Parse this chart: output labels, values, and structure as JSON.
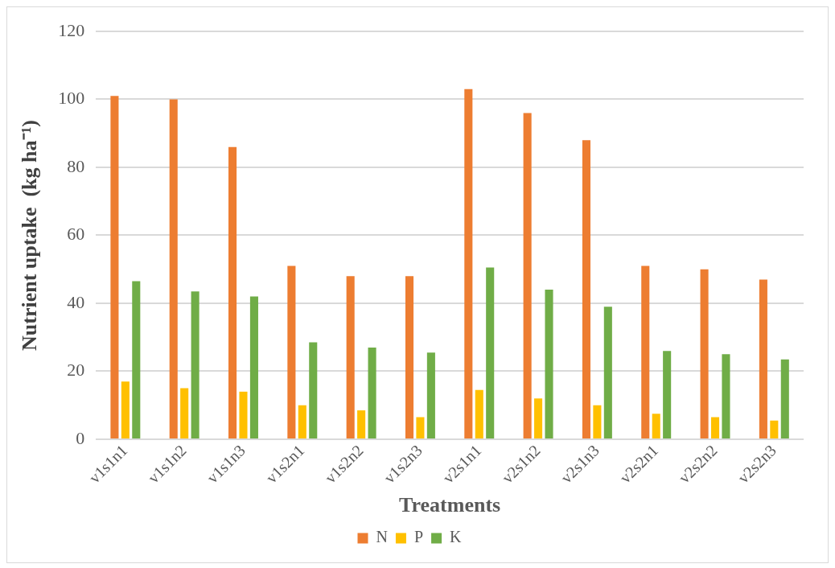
{
  "chart_data": {
    "type": "bar",
    "xlabel": "Treatments",
    "ylabel": "Nutrient uptake  (kg ha⁻¹)",
    "categories": [
      "v1s1n1",
      "v1s1n2",
      "v1s1n3",
      "v1s2n1",
      "v1s2n2",
      "v1s2n3",
      "v2s1n1",
      "v2s1n2",
      "v2s1n3",
      "v2s2n1",
      "v2s2n2",
      "v2s2n3"
    ],
    "series": [
      {
        "name": "N",
        "color": "#ed7d31",
        "values": [
          101,
          100,
          86,
          51,
          48,
          48,
          103,
          96,
          88,
          51,
          50,
          47
        ]
      },
      {
        "name": "P",
        "color": "#ffc000",
        "values": [
          17,
          15,
          14,
          10,
          8.5,
          6.5,
          14.5,
          12,
          10,
          7.5,
          6.5,
          5.5
        ]
      },
      {
        "name": "K",
        "color": "#70ad47",
        "values": [
          46.5,
          43.5,
          42,
          28.5,
          27,
          25.5,
          50.5,
          44,
          39,
          26,
          25,
          23.5
        ]
      }
    ],
    "ylim": [
      0,
      120
    ],
    "yticks": [
      0,
      20,
      40,
      60,
      80,
      100,
      120
    ],
    "grid": "y",
    "legend": "bottom"
  }
}
